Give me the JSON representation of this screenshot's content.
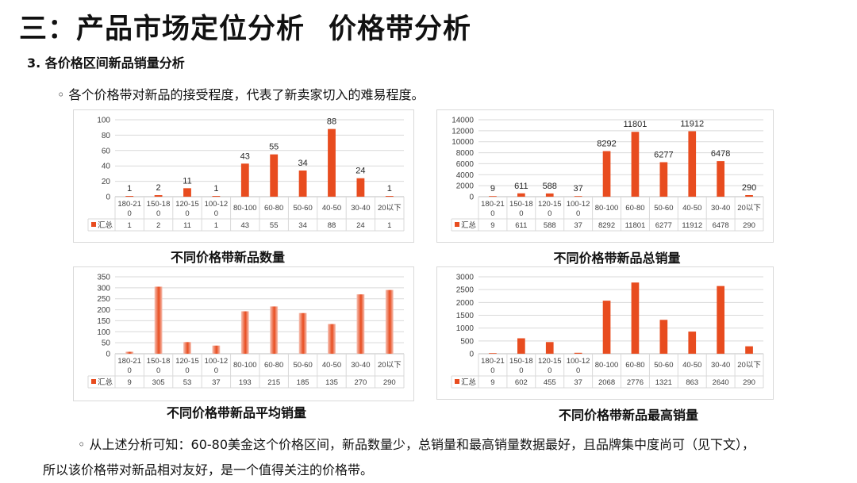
{
  "page": {
    "title_part1": "三：产品市场定位分析",
    "title_part2": "价格带分析",
    "subtitle": "3. 各价格区间新品销量分析",
    "intro": "◦ 各个价格带对新品的接受程度，代表了新卖家切入的难易程度。",
    "conclusion_line1": "◦ 从上述分析可知：60-80美金这个价格区间，新品数量少，总销量和最高销量数据最好，且品牌集中度尚可（见下文），",
    "conclusion_line2": "所以该价格带对新品相对友好，是一个值得关注的价格带。"
  },
  "colors": {
    "bar": "#e84c1f",
    "bar_gradient_light": "#f6c2b5",
    "grid": "#d9d9d9",
    "axis_text": "#404040"
  },
  "chart_data": [
    {
      "type": "bar",
      "title": "不同价格带新品数量",
      "categories": [
        "180-210",
        "150-180",
        "120-150",
        "100-120",
        "80-100",
        "60-80",
        "50-60",
        "40-50",
        "30-40",
        "20以下"
      ],
      "category_display": [
        [
          "180-21",
          "0"
        ],
        [
          "150-18",
          "0"
        ],
        [
          "120-15",
          "0"
        ],
        [
          "100-12",
          "0"
        ],
        [
          "80-100"
        ],
        [
          "60-80"
        ],
        [
          "50-60"
        ],
        [
          "40-50"
        ],
        [
          "30-40"
        ],
        [
          "20以下"
        ]
      ],
      "series": [
        {
          "name": "汇总",
          "values": [
            1,
            2,
            11,
            1,
            43,
            55,
            34,
            88,
            24,
            1
          ]
        }
      ],
      "yticks": [
        0,
        20,
        40,
        60,
        80,
        100
      ],
      "ylim": [
        0,
        100
      ],
      "data_labels": true,
      "gradient": false,
      "grid": true,
      "legend": "data-table"
    },
    {
      "type": "bar",
      "title": "不同价格带新品总销量",
      "categories": [
        "180-210",
        "150-180",
        "120-150",
        "100-120",
        "80-100",
        "60-80",
        "50-60",
        "40-50",
        "30-40",
        "20以下"
      ],
      "category_display": [
        [
          "180-21",
          "0"
        ],
        [
          "150-18",
          "0"
        ],
        [
          "120-15",
          "0"
        ],
        [
          "100-12",
          "0"
        ],
        [
          "80-100"
        ],
        [
          "60-80"
        ],
        [
          "50-60"
        ],
        [
          "40-50"
        ],
        [
          "30-40"
        ],
        [
          "20以下"
        ]
      ],
      "series": [
        {
          "name": "汇总",
          "values": [
            9,
            611,
            588,
            37,
            8292,
            11801,
            6277,
            11912,
            6478,
            290
          ]
        }
      ],
      "yticks": [
        0,
        2000,
        4000,
        6000,
        8000,
        10000,
        12000,
        14000
      ],
      "ylim": [
        0,
        14000
      ],
      "data_labels": true,
      "gradient": false,
      "grid": true,
      "legend": "data-table"
    },
    {
      "type": "bar",
      "title": "不同价格带新品平均销量",
      "categories": [
        "180-210",
        "150-180",
        "120-150",
        "100-120",
        "80-100",
        "60-80",
        "50-60",
        "40-50",
        "30-40",
        "20以下"
      ],
      "category_display": [
        [
          "180-21",
          "0"
        ],
        [
          "150-18",
          "0"
        ],
        [
          "120-15",
          "0"
        ],
        [
          "100-12",
          "0"
        ],
        [
          "80-100"
        ],
        [
          "60-80"
        ],
        [
          "50-60"
        ],
        [
          "40-50"
        ],
        [
          "30-40"
        ],
        [
          "20以下"
        ]
      ],
      "series": [
        {
          "name": "汇总",
          "values": [
            9,
            305,
            53,
            37,
            193,
            215,
            185,
            135,
            270,
            290
          ]
        }
      ],
      "yticks": [
        0,
        50,
        100,
        150,
        200,
        250,
        300,
        350
      ],
      "ylim": [
        0,
        350
      ],
      "data_labels": false,
      "gradient": true,
      "grid": true,
      "legend": "data-table"
    },
    {
      "type": "bar",
      "title": "不同价格带新品最高销量",
      "categories": [
        "180-210",
        "150-180",
        "120-150",
        "100-120",
        "80-100",
        "60-80",
        "50-60",
        "40-50",
        "30-40",
        "20以下"
      ],
      "category_display": [
        [
          "180-21",
          "0"
        ],
        [
          "150-18",
          "0"
        ],
        [
          "120-15",
          "0"
        ],
        [
          "100-12",
          "0"
        ],
        [
          "80-100"
        ],
        [
          "60-80"
        ],
        [
          "50-60"
        ],
        [
          "40-50"
        ],
        [
          "30-40"
        ],
        [
          "20以下"
        ]
      ],
      "series": [
        {
          "name": "汇总",
          "values": [
            9,
            602,
            455,
            37,
            2068,
            2776,
            1321,
            863,
            2640,
            290
          ]
        }
      ],
      "yticks": [
        0,
        500,
        1000,
        1500,
        2000,
        2500,
        3000
      ],
      "ylim": [
        0,
        3000
      ],
      "data_labels": false,
      "gradient": false,
      "grid": true,
      "legend": "data-table"
    }
  ]
}
